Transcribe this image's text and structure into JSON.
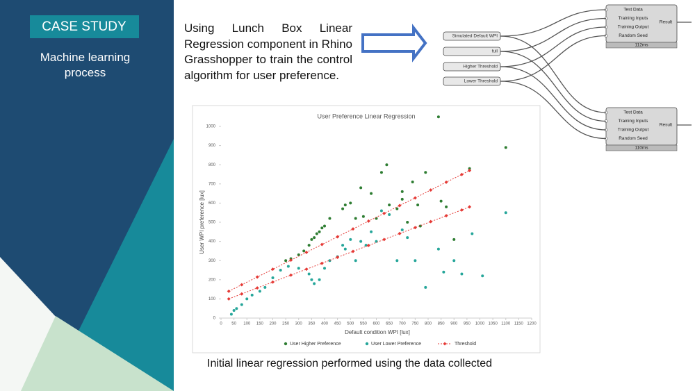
{
  "slide": {
    "tag": "CASE STUDY",
    "subtitle": "Machine learning process",
    "body": "Using Lunch Box Linear Regression component in Rhino Grasshopper to train the control algorithm for user preference.",
    "caption": "Initial linear regression performed using the data collected"
  },
  "grasshopper": {
    "inputs": [
      "Simulated Default WPI",
      "full",
      "Higher Threshold",
      "Lower Threshold"
    ],
    "ports": [
      "Test Data",
      "Training Inputs",
      "Training Output",
      "Random Seed"
    ],
    "output": "Result",
    "timings": [
      "112ms",
      "110ms"
    ]
  },
  "chart_data": {
    "type": "scatter",
    "title": "User Preference Linear Regression",
    "x_label": "Default condition WPI [lux]",
    "y_label": "User WPI preference [lux]",
    "xlim": [
      0,
      1200
    ],
    "xticks": [
      0,
      50,
      100,
      150,
      200,
      250,
      300,
      350,
      400,
      450,
      500,
      550,
      600,
      650,
      700,
      750,
      800,
      850,
      900,
      950,
      1000,
      1050,
      1100,
      1150,
      1200
    ],
    "ylim": [
      0,
      1000
    ],
    "yticks": [
      0,
      100,
      200,
      300,
      400,
      500,
      600,
      700,
      800,
      900,
      1000
    ],
    "series": [
      {
        "name": "User Higher Preference",
        "color": "#2e7d32",
        "x": [
          250,
          270,
          300,
          320,
          340,
          350,
          360,
          370,
          380,
          390,
          400,
          420,
          470,
          480,
          500,
          520,
          540,
          550,
          580,
          600,
          620,
          640,
          650,
          680,
          700,
          700,
          720,
          740,
          760,
          770,
          790,
          840,
          850,
          870,
          900,
          960,
          1100
        ],
        "y": [
          300,
          310,
          330,
          350,
          380,
          410,
          420,
          440,
          450,
          470,
          480,
          520,
          570,
          590,
          600,
          520,
          680,
          530,
          650,
          520,
          760,
          800,
          590,
          570,
          660,
          620,
          500,
          710,
          590,
          480,
          760,
          1050,
          610,
          580,
          410,
          780,
          890
        ]
      },
      {
        "name": "User Lower Preference",
        "color": "#26a69a",
        "x": [
          40,
          50,
          60,
          80,
          100,
          120,
          150,
          170,
          200,
          230,
          260,
          300,
          340,
          350,
          360,
          380,
          400,
          420,
          450,
          470,
          480,
          500,
          520,
          540,
          560,
          580,
          600,
          620,
          650,
          680,
          700,
          720,
          750,
          790,
          840,
          860,
          900,
          930,
          970,
          1010,
          1100
        ],
        "y": [
          20,
          40,
          50,
          70,
          100,
          120,
          140,
          160,
          210,
          250,
          270,
          260,
          230,
          200,
          180,
          200,
          260,
          300,
          320,
          380,
          360,
          410,
          300,
          400,
          380,
          450,
          400,
          560,
          540,
          300,
          460,
          420,
          300,
          160,
          360,
          240,
          300,
          230,
          440,
          220,
          550
        ]
      },
      {
        "name": "Threshold",
        "color": "#e53935",
        "lines": [
          {
            "x": [
              30,
              80,
              140,
              200,
              270,
              330,
              390,
              450,
              510,
              570,
              630,
              690,
              750,
              810,
              870,
              930,
              960
            ],
            "y": [
              140,
              174,
              214,
              255,
              302,
              343,
              384,
              424,
              465,
              506,
              546,
              587,
              627,
              668,
              709,
              749,
              770
            ]
          },
          {
            "x": [
              30,
              80,
              140,
              200,
              270,
              330,
              390,
              450,
              510,
              570,
              630,
              690,
              750,
              810,
              870,
              930,
              960
            ],
            "y": [
              100,
              126,
              157,
              188,
              224,
              255,
              286,
              317,
              348,
              379,
              410,
              441,
              472,
              503,
              534,
              564,
              580
            ]
          }
        ]
      }
    ]
  }
}
